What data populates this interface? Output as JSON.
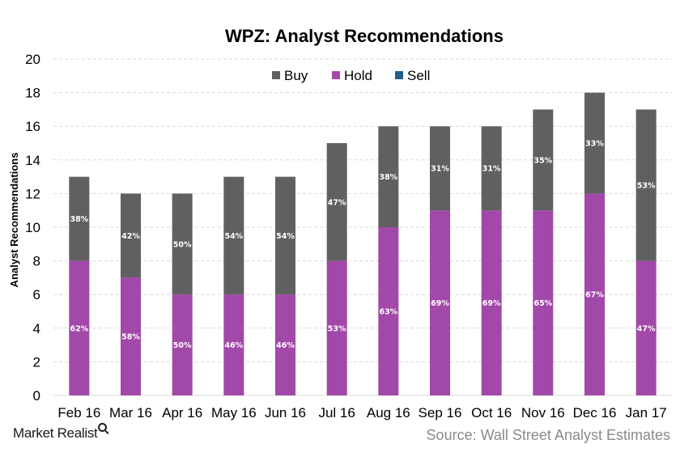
{
  "chart_data": {
    "type": "bar",
    "stacked": true,
    "title": "WPZ: Analyst Recommendations",
    "ylabel": "Analyst Recommendations",
    "xlabel": "",
    "ylim": [
      0,
      20
    ],
    "yticks": [
      0,
      2,
      4,
      6,
      8,
      10,
      12,
      14,
      16,
      18,
      20
    ],
    "grid": true,
    "legend_position": "top-center",
    "categories": [
      "Feb 16",
      "Mar 16",
      "Apr 16",
      "May 16",
      "Jun 16",
      "Jul 16",
      "Aug 16",
      "Sep 16",
      "Oct 16",
      "Nov 16",
      "Dec 16",
      "Jan 17"
    ],
    "series": [
      {
        "name": "Buy",
        "color": "#606060",
        "values": [
          5,
          5,
          6,
          7,
          7,
          7,
          6,
          5,
          5,
          6,
          6,
          9
        ],
        "labels": [
          "38%",
          "42%",
          "50%",
          "54%",
          "54%",
          "47%",
          "38%",
          "31%",
          "31%",
          "35%",
          "33%",
          "53%"
        ]
      },
      {
        "name": "Hold",
        "color": "#a148a8",
        "values": [
          8,
          7,
          6,
          6,
          6,
          8,
          10,
          11,
          11,
          11,
          12,
          8
        ],
        "labels": [
          "62%",
          "58%",
          "50%",
          "46%",
          "46%",
          "53%",
          "63%",
          "69%",
          "69%",
          "65%",
          "67%",
          "47%"
        ]
      },
      {
        "name": "Sell",
        "color": "#1f5f8b",
        "values": [
          0,
          0,
          0,
          0,
          0,
          0,
          0,
          0,
          0,
          0,
          0,
          0
        ],
        "labels": [
          "",
          "",
          "",
          "",
          "",
          "",
          "",
          "",
          "",
          "",
          "",
          ""
        ]
      }
    ]
  },
  "footer": {
    "brand": "Market Realist",
    "source": "Source: Wall Street Analyst Estimates"
  }
}
